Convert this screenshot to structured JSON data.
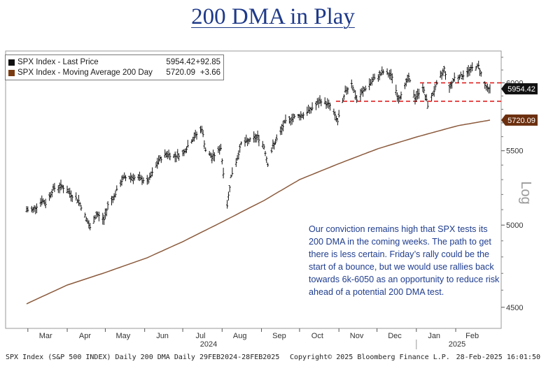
{
  "page": {
    "title": "200 DMA in Play",
    "commentary": "Our conviction remains high that SPX tests its 200 DMA in the coming weeks. The path to get there is less certain. Friday’s rally could be the start of a bounce, but we would use rallies back towards 6k-6050 as an opportunity to reduce risk ahead of a potential 200 DMA test."
  },
  "legend": [
    {
      "name": "SPX Index - Last Price",
      "value": "5954.42",
      "change": "+92.85",
      "color": "#111111"
    },
    {
      "name": "SPX Index - Moving Average 200 Day",
      "value": "5720.09",
      "change": "+3.66",
      "color": "#7a3b10"
    }
  ],
  "footer": {
    "left": "SPX Index (S&P 500 INDEX) Daily 200 DMA  Daily 29FEB2024-28FEB2025",
    "center": "Copyright© 2025 Bloomberg Finance L.P.",
    "right": "28-Feb-2025 16:01:50"
  },
  "chart_data": {
    "type": "line",
    "scale": "log",
    "y_axis_label": "Log",
    "y_ticks": [
      4500,
      5000,
      5500,
      6000
    ],
    "ylim": [
      4380,
      6250
    ],
    "x_tick_labels": [
      "Mar",
      "Apr",
      "May",
      "Jun",
      "Jul",
      "Aug",
      "Sep",
      "Oct",
      "Nov",
      "Dec",
      "Jan",
      "Feb"
    ],
    "year_labels": [
      "2024",
      "2025"
    ],
    "last_price_label": "5954.42",
    "ma_label": "5720.09",
    "reference_lines": [
      6000,
      5860
    ],
    "reference_line_color": "#e02020",
    "series": [
      {
        "name": "SPX Index - Last Price",
        "color": "#111111",
        "x": [
          "2024-02-29",
          "2024-03-05",
          "2024-03-08",
          "2024-03-12",
          "2024-03-15",
          "2024-03-21",
          "2024-03-28",
          "2024-04-04",
          "2024-04-10",
          "2024-04-15",
          "2024-04-19",
          "2024-04-24",
          "2024-04-30",
          "2024-05-03",
          "2024-05-08",
          "2024-05-15",
          "2024-05-21",
          "2024-05-28",
          "2024-06-04",
          "2024-06-12",
          "2024-06-18",
          "2024-06-24",
          "2024-07-01",
          "2024-07-08",
          "2024-07-16",
          "2024-07-19",
          "2024-07-24",
          "2024-07-31",
          "2024-08-02",
          "2024-08-05",
          "2024-08-08",
          "2024-08-13",
          "2024-08-16",
          "2024-08-22",
          "2024-08-29",
          "2024-09-03",
          "2024-09-06",
          "2024-09-10",
          "2024-09-16",
          "2024-09-19",
          "2024-09-26",
          "2024-10-04",
          "2024-10-11",
          "2024-10-18",
          "2024-10-25",
          "2024-10-31",
          "2024-11-06",
          "2024-11-11",
          "2024-11-15",
          "2024-11-22",
          "2024-11-29",
          "2024-12-06",
          "2024-12-13",
          "2024-12-18",
          "2024-12-20",
          "2024-12-26",
          "2024-12-31",
          "2025-01-06",
          "2025-01-10",
          "2025-01-15",
          "2025-01-23",
          "2025-01-27",
          "2025-01-31",
          "2025-02-07",
          "2025-02-14",
          "2025-02-19",
          "2025-02-24",
          "2025-02-26",
          "2025-02-28"
        ],
        "values": [
          5096,
          5100,
          5125,
          5160,
          5140,
          5240,
          5255,
          5200,
          5160,
          5060,
          4980,
          5070,
          5035,
          5130,
          5190,
          5310,
          5320,
          5305,
          5290,
          5430,
          5480,
          5460,
          5480,
          5575,
          5660,
          5505,
          5450,
          5520,
          5350,
          5130,
          5320,
          5450,
          5550,
          5570,
          5600,
          5530,
          5410,
          5530,
          5630,
          5700,
          5740,
          5760,
          5810,
          5865,
          5830,
          5710,
          5930,
          6000,
          5870,
          5960,
          6030,
          6085,
          6050,
          5870,
          5920,
          6040,
          5882,
          5970,
          5830,
          5940,
          6110,
          5960,
          6040,
          6060,
          6115,
          6130,
          5990,
          5950,
          5954.42
        ]
      },
      {
        "name": "SPX Index - Moving Average 200 Day",
        "color": "#8b5a3c",
        "x": [
          "2024-02-29",
          "2024-04-01",
          "2024-05-01",
          "2024-06-03",
          "2024-07-01",
          "2024-08-01",
          "2024-09-03",
          "2024-10-01",
          "2024-11-01",
          "2024-12-02",
          "2025-01-02",
          "2025-02-03",
          "2025-02-28"
        ],
        "values": [
          4520,
          4630,
          4705,
          4795,
          4895,
          5020,
          5160,
          5300,
          5410,
          5515,
          5600,
          5680,
          5720.09
        ]
      }
    ]
  }
}
